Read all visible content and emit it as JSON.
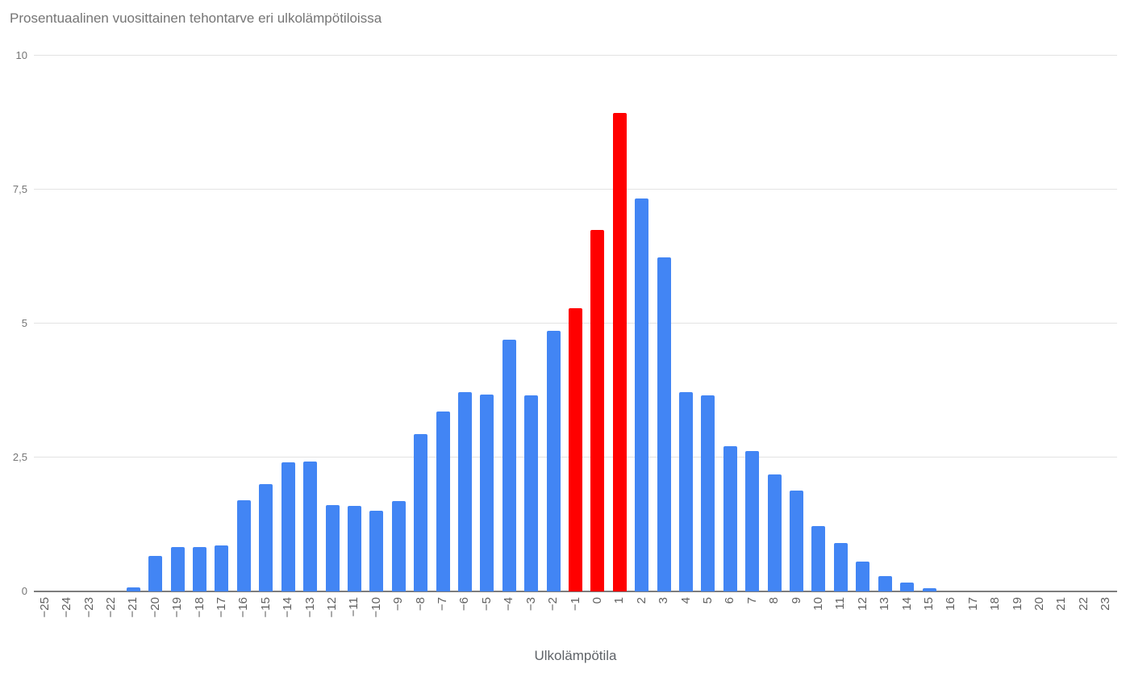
{
  "page": {
    "background": "#ffffff"
  },
  "chart_data": {
    "type": "bar",
    "title": "Prosentuaalinen vuosittainen tehontarve eri ulkolämpötiloissa",
    "xlabel": "Ulkolämpötila",
    "ylabel": "",
    "legend": "none",
    "grid": true,
    "ylim": [
      0,
      10
    ],
    "yticks": [
      {
        "value": 0,
        "label": "0"
      },
      {
        "value": 2.5,
        "label": "2,5"
      },
      {
        "value": 5,
        "label": "5"
      },
      {
        "value": 7.5,
        "label": "7,5"
      },
      {
        "value": 10,
        "label": "10"
      }
    ],
    "categories": [
      -25,
      -24,
      -23,
      -22,
      -21,
      -20,
      -19,
      -18,
      -17,
      -16,
      -15,
      -14,
      -13,
      -12,
      -11,
      -10,
      -9,
      -8,
      -7,
      -6,
      -5,
      -4,
      -3,
      -2,
      -1,
      0,
      1,
      2,
      3,
      4,
      5,
      6,
      7,
      8,
      9,
      10,
      11,
      12,
      13,
      14,
      15,
      16,
      17,
      18,
      19,
      20,
      21,
      22,
      23
    ],
    "values": [
      0,
      0,
      0,
      0,
      0.08,
      0.66,
      0.83,
      0.83,
      0.86,
      1.7,
      2.01,
      2.41,
      2.43,
      1.61,
      1.59,
      1.5,
      1.68,
      2.94,
      3.36,
      3.72,
      3.67,
      4.7,
      3.66,
      4.86,
      5.29,
      6.74,
      8.93,
      7.34,
      6.24,
      3.72,
      3.66,
      2.71,
      2.62,
      2.19,
      1.89,
      1.22,
      0.9,
      0.55,
      0.28,
      0.16,
      0.06,
      0,
      0,
      0,
      0,
      0,
      0,
      0,
      0
    ],
    "highlighted_categories": [
      -1,
      0,
      1
    ],
    "series_color": "#4285f4",
    "highlight_color": "#ff0000",
    "title_color": "#757575",
    "axis_title_color": "#5f6368",
    "x_tick_color": "#616161",
    "y_tick_color": "#757575",
    "gridline_color": "#e3e3e3",
    "baseline_color": "#7d7d7d"
  }
}
